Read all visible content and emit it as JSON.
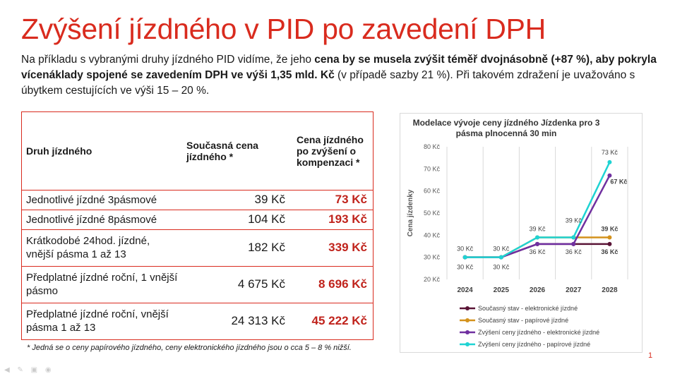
{
  "title": "Zvýšení jízdného v PID po zavedení DPH",
  "intro": {
    "part1": "Na příkladu s vybranými druhy jízdného PID vidíme, že jeho ",
    "bold1": "cena by se musela zvýšit téměř dvojnásobně (+87 %), aby pokryla vícenáklady spojené se zavedením DPH ve výši 1,35 mld. Kč",
    "part2": " (v případě sazby 21 %). Při takovém zdražení je uvažováno s úbytkem cestujících ve výši 15 – 20 %."
  },
  "table": {
    "headers": [
      "Druh jízdného",
      "Současná cena jízdného *",
      "Cena jízdného po zvýšení o kompenzaci *"
    ],
    "rows": [
      {
        "type": "Jednotlivé jízdné 3pásmové",
        "current": "39 Kč",
        "new": "73 Kč"
      },
      {
        "type": "Jednotlivé jízdné 8pásmové",
        "current": "104 Kč",
        "new": "193 Kč"
      },
      {
        "type": "Krátkodobé 24hod. jízdné, vnější pásma 1 až 13",
        "current": "182 Kč",
        "new": "339 Kč"
      },
      {
        "type": "Předplatné jízdné roční, 1 vnější pásmo",
        "current": "4 675 Kč",
        "new": "8 696 Kč"
      },
      {
        "type": "Předplatné jízdné roční, vnější pásma 1 až 13",
        "current": "24 313 Kč",
        "new": "45 222 Kč"
      }
    ]
  },
  "footnote": "* Jedná se o ceny papírového jízdného, ceny elektronického jízdného jsou o cca 5 – 8 % nižší.",
  "page_number": "1",
  "chart_data": {
    "type": "line",
    "title": "Modelace vývoje ceny jízdného Jízdenka pro 3 pásma plnocenná 30 min",
    "ylabel": "Cena jízdenky",
    "xlabel": "",
    "x": [
      "2024",
      "2025",
      "2026",
      "2027",
      "2028"
    ],
    "ylim": [
      20,
      80
    ],
    "yticks": [
      "20 Kč",
      "30 Kč",
      "40 Kč",
      "50 Kč",
      "60 Kč",
      "70 Kč",
      "80 Kč"
    ],
    "grid": "vertical",
    "legend_position": "bottom",
    "series": [
      {
        "name": "Současný stav - elektronické jízdné",
        "color": "#5a1436",
        "values": [
          30,
          30,
          36,
          36,
          36
        ]
      },
      {
        "name": "Současný stav - papírové jízdné",
        "color": "#d4921c",
        "values": [
          30,
          30,
          39,
          39,
          39
        ]
      },
      {
        "name": "Zvýšení ceny jízdného - elektronické jízdné",
        "color": "#7030a0",
        "values": [
          30,
          30,
          36,
          36,
          67
        ]
      },
      {
        "name": "Zvýšení ceny jízdného - papírové jízdné",
        "color": "#1fd3d3",
        "values": [
          30,
          30,
          39,
          39,
          73
        ]
      }
    ],
    "data_labels": [
      "30 Kč",
      "30 Kč",
      "30 Kč",
      "30 Kč",
      "39 Kč",
      "36 Kč",
      "39 Kč",
      "36 Kč",
      "73 Kč",
      "67 Kč",
      "39 Kč",
      "36 Kč"
    ]
  }
}
